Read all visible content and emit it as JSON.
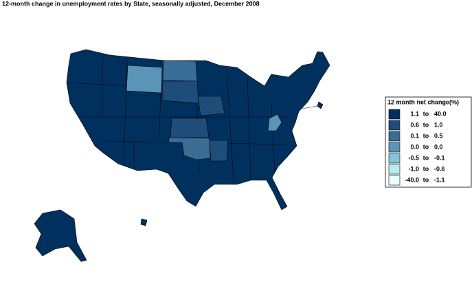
{
  "title": "12-month change in unemployment rates by State, seasonally adjusted,  December  2008",
  "legend": {
    "title": "12 month net change(%)",
    "entries": [
      {
        "low": "1.1",
        "to": "to",
        "high": "40.0",
        "color": "#00305e"
      },
      {
        "low": "0.6",
        "to": "to",
        "high": "1.0",
        "color": "#1e4d7a"
      },
      {
        "low": "0.1",
        "to": "to",
        "high": "0.5",
        "color": "#3a6d96"
      },
      {
        "low": "0.0",
        "to": "to",
        "high": "0.0",
        "color": "#5a94b6"
      },
      {
        "low": "-0.5",
        "to": "to",
        "high": "-0.1",
        "color": "#86c4d8"
      },
      {
        "low": "-1.0",
        "to": "to",
        "high": "-0.6",
        "color": "#b9ecf0"
      },
      {
        "low": "-40.0",
        "to": "to",
        "high": "-1.1",
        "color": "#e6ffff"
      }
    ]
  }
}
